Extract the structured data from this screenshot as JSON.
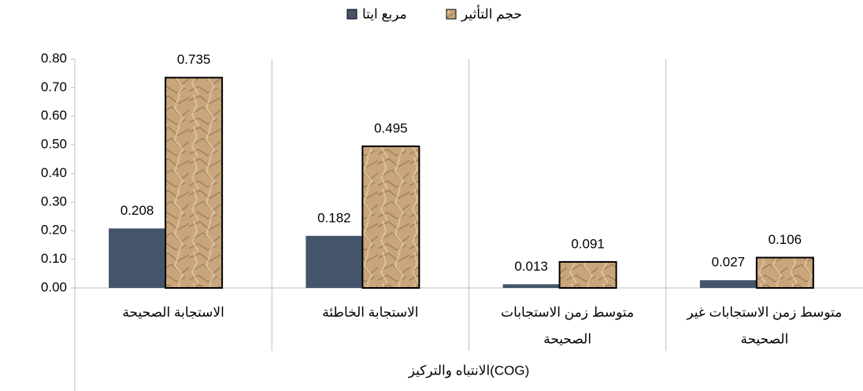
{
  "chart_data": {
    "type": "bar",
    "categories": [
      [
        "الاستجابة الصحيحة"
      ],
      [
        "الاستجابة الخاطئة"
      ],
      [
        "متوسط زمن الاستجابات",
        "الصحيحة"
      ],
      [
        "متوسط زمن الاستجابات غير",
        "الصحيحة"
      ]
    ],
    "group_label": "الانتباه والتركيز(COG)",
    "series": [
      {
        "name": "مربع ايتا",
        "color": "#44546a",
        "values": [
          0.208,
          0.182,
          0.013,
          0.027
        ]
      },
      {
        "name": "حجم التأثير",
        "color": "#c8a57a",
        "values": [
          0.735,
          0.495,
          0.091,
          0.106
        ]
      }
    ],
    "ylim": [
      0,
      0.8
    ],
    "yticks": [
      {
        "value": 0,
        "label": "0.00"
      },
      {
        "value": 0.1,
        "label": "0.10"
      },
      {
        "value": 0.2,
        "label": "0.20"
      },
      {
        "value": 0.3,
        "label": "0.30"
      },
      {
        "value": 0.4,
        "label": "0.40"
      },
      {
        "value": 0.5,
        "label": "0.50"
      },
      {
        "value": 0.6,
        "label": "0.60"
      },
      {
        "value": 0.7,
        "label": "0.70"
      },
      {
        "value": 0.8,
        "label": "0.80"
      }
    ],
    "legend": "top"
  }
}
